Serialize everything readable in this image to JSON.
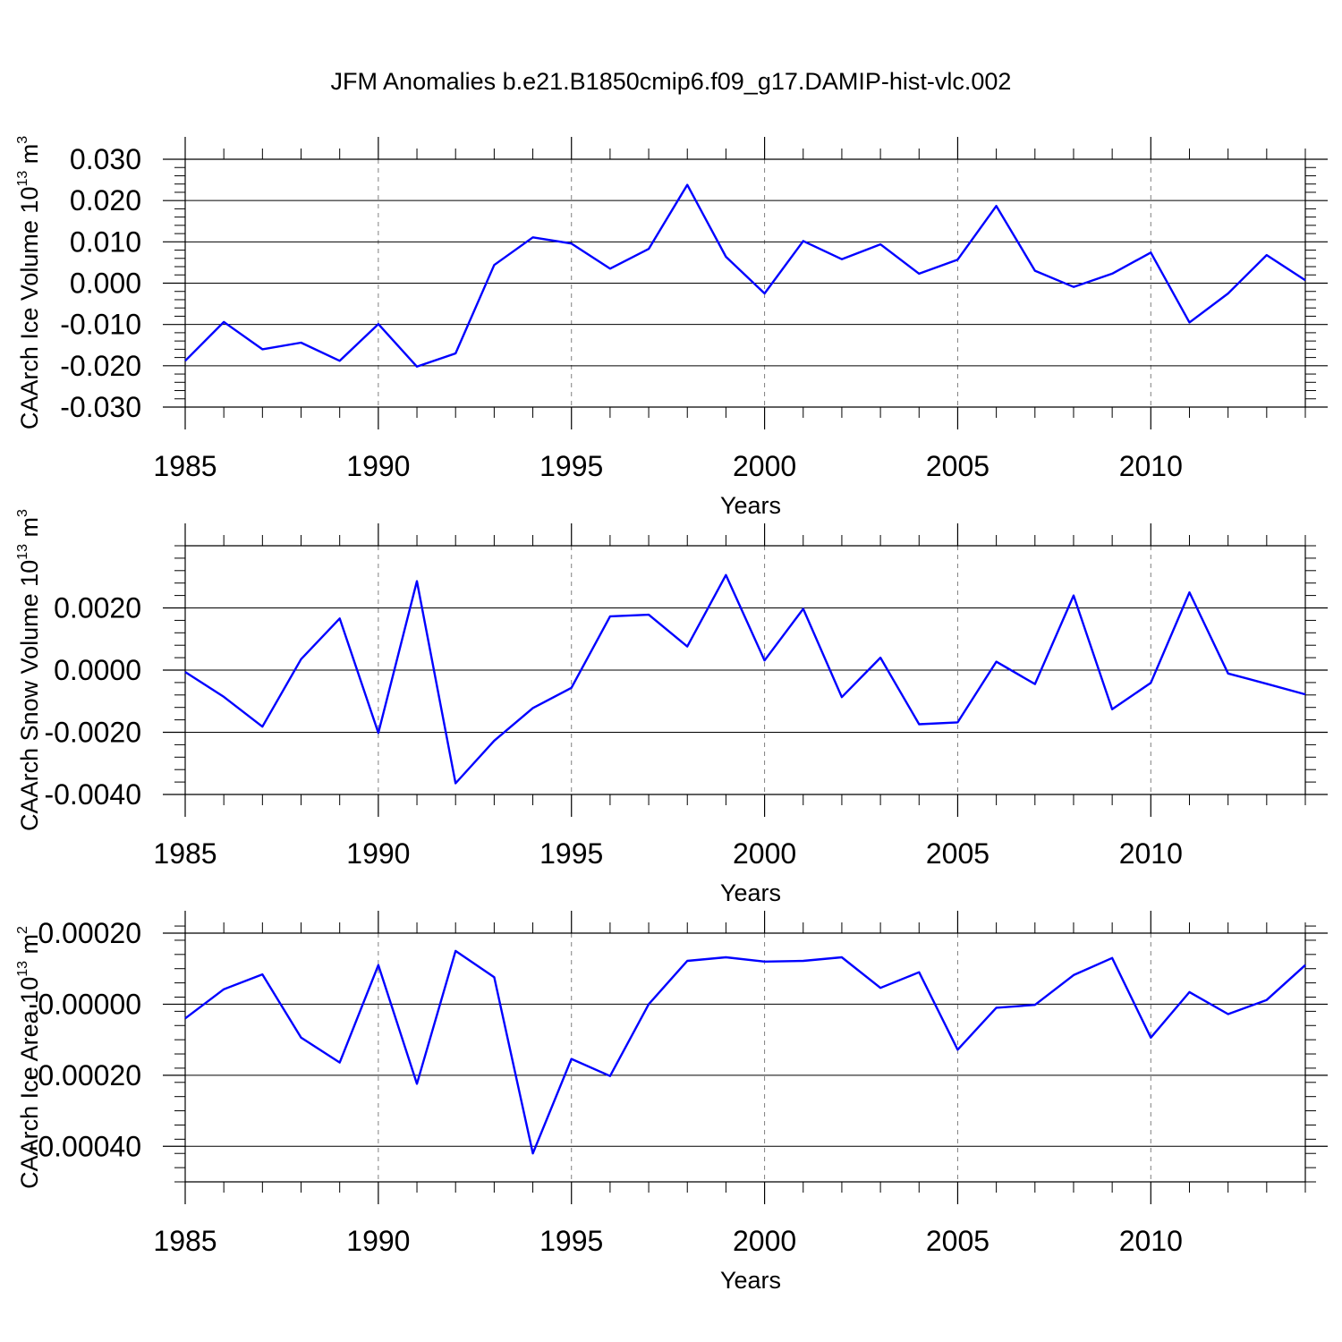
{
  "title": "JFM Anomalies b.e21.B1850cmip6.f09_g17.DAMIP-hist-vlc.002",
  "colors": {
    "line": "#0000ff",
    "axis": "#000000",
    "grid": "#808080"
  },
  "chart_data": [
    {
      "type": "line",
      "xlabel": "Years",
      "ylabel_text": "CAArch Ice Volume 10",
      "ylabel_exp": "13",
      "ylabel_unit": "m",
      "ylabel_unit_exp": "3",
      "xlim": [
        1985,
        2014
      ],
      "ylim": [
        -0.03,
        0.03
      ],
      "xticks": [
        "1985",
        "1990",
        "1995",
        "2000",
        "2005",
        "2010"
      ],
      "xtick_values": [
        1985,
        1990,
        1995,
        2000,
        2005,
        2010
      ],
      "yticks": [
        "-0.030",
        "-0.020",
        "-0.010",
        "0.000",
        "0.010",
        "0.020",
        "0.030"
      ],
      "ytick_values": [
        -0.03,
        -0.02,
        -0.01,
        0,
        0.01,
        0.02,
        0.03
      ],
      "grid": "dashed vertical at major x ticks",
      "x": [
        1985,
        1986,
        1987,
        1988,
        1989,
        1990,
        1991,
        1992,
        1993,
        1994,
        1995,
        1996,
        1997,
        1998,
        1999,
        2000,
        2001,
        2002,
        2003,
        2004,
        2005,
        2006,
        2007,
        2008,
        2009,
        2010,
        2011,
        2012,
        2013,
        2014
      ],
      "values": [
        -0.0188,
        -0.0094,
        -0.016,
        -0.0144,
        -0.0188,
        -0.0099,
        -0.0202,
        -0.017,
        0.0044,
        0.0111,
        0.0096,
        0.0035,
        0.0083,
        0.0238,
        0.0064,
        -0.0025,
        0.0102,
        0.0058,
        0.0094,
        0.0023,
        0.0057,
        0.0187,
        0.003,
        -0.0009,
        0.0023,
        0.0074,
        -0.0095,
        -0.0025,
        0.0068,
        0.0007
      ]
    },
    {
      "type": "line",
      "xlabel": "Years",
      "ylabel_text": "CAArch Snow Volume 10",
      "ylabel_exp": "13",
      "ylabel_unit": "m",
      "ylabel_unit_exp": "3",
      "xlim": [
        1985,
        2014
      ],
      "ylim": [
        -0.004,
        0.004
      ],
      "xticks": [
        "1985",
        "1990",
        "1995",
        "2000",
        "2005",
        "2010"
      ],
      "xtick_values": [
        1985,
        1990,
        1995,
        2000,
        2005,
        2010
      ],
      "yticks": [
        "-0.0040",
        "-0.0020",
        "0.0000",
        "0.0020"
      ],
      "ytick_values": [
        -0.004,
        -0.002,
        0,
        0.002
      ],
      "grid": "dashed vertical at major x ticks",
      "x": [
        1985,
        1986,
        1987,
        1988,
        1989,
        1990,
        1991,
        1992,
        1993,
        1994,
        1995,
        1996,
        1997,
        1998,
        1999,
        2000,
        2001,
        2002,
        2003,
        2004,
        2005,
        2006,
        2007,
        2008,
        2009,
        2010,
        2011,
        2012,
        2013,
        2014
      ],
      "values": [
        -6e-05,
        -0.00086,
        -0.00182,
        0.00035,
        0.00166,
        -0.00202,
        0.00286,
        -0.00364,
        -0.00227,
        -0.00122,
        -0.00057,
        0.00173,
        0.00178,
        0.00076,
        0.00306,
        0.00031,
        0.00197,
        -0.00087,
        0.0004,
        -0.00174,
        -0.00168,
        0.00027,
        -0.00045,
        0.0024,
        -0.00126,
        -0.00041,
        0.0025,
        -0.00011,
        -0.00044,
        -0.00078
      ]
    },
    {
      "type": "line",
      "xlabel": "Years",
      "ylabel_text": "CAArch Ice Area 10",
      "ylabel_exp": "13",
      "ylabel_unit": "m",
      "ylabel_unit_exp": "2",
      "xlim": [
        1985,
        2014
      ],
      "ylim": [
        -0.0005,
        0.0002
      ],
      "xticks": [
        "1985",
        "1990",
        "1995",
        "2000",
        "2005",
        "2010"
      ],
      "xtick_values": [
        1985,
        1990,
        1995,
        2000,
        2005,
        2010
      ],
      "yticks": [
        "-0.00040",
        "-0.00020",
        "-0.00000",
        "0.00020"
      ],
      "ytick_values": [
        -0.0004,
        -0.0002,
        0,
        0.0002
      ],
      "grid": "dashed vertical at major x ticks",
      "x": [
        1985,
        1986,
        1987,
        1988,
        1989,
        1990,
        1991,
        1992,
        1993,
        1994,
        1995,
        1996,
        1997,
        1998,
        1999,
        2000,
        2001,
        2002,
        2003,
        2004,
        2005,
        2006,
        2007,
        2008,
        2009,
        2010,
        2011,
        2012,
        2013,
        2014
      ],
      "values": [
        -4e-05,
        4.2e-05,
        8.4e-05,
        -9.4e-05,
        -0.000164,
        0.00011,
        -0.000224,
        0.00015,
        7.6e-05,
        -0.00042,
        -0.000154,
        -0.000202,
        0.0,
        0.000122,
        0.000132,
        0.00012,
        0.000122,
        0.000132,
        4.6e-05,
        9e-05,
        -0.000128,
        -1e-05,
        -2e-06,
        8.2e-05,
        0.00013,
        -9.4e-05,
        3.4e-05,
        -2.8e-05,
        1.2e-05,
        0.00011
      ]
    }
  ]
}
